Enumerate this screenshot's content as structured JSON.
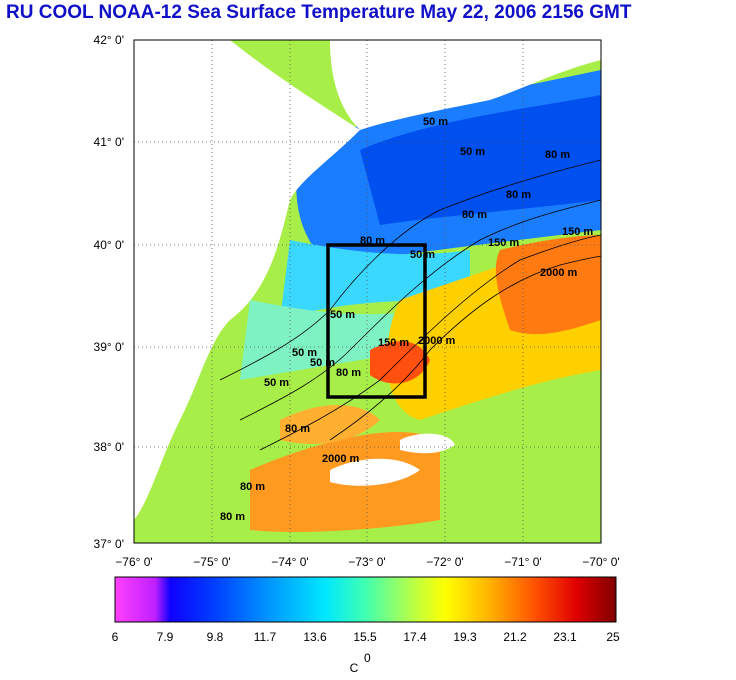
{
  "title": "RU COOL  NOAA-12 Sea Surface Temperature May 22, 2006 2156 GMT",
  "lat_labels": [
    "42° 0'",
    "41° 0'",
    "40° 0'",
    "39° 0'",
    "38° 0'",
    "37° 0'"
  ],
  "lon_labels": [
    "−76° 0'",
    "−75° 0'",
    "−74° 0'",
    "−73° 0'",
    "−72° 0'",
    "−71° 0'",
    "−70° 0'"
  ],
  "contour_labels": [
    "50 m",
    "50 m",
    "80 m",
    "80 m",
    "80 m",
    "80 m",
    "150 m",
    "150 m",
    "2000 m",
    "2000 m",
    "50 m",
    "50 m",
    "50 m",
    "80 m",
    "150 m",
    "80 m",
    "2000 m",
    "80 m",
    "80 m",
    "50 m",
    "50 m"
  ],
  "colorbar": {
    "ticks": [
      "6",
      "7.9",
      "9.8",
      "11.7",
      "13.6",
      "15.5",
      "17.4",
      "19.3",
      "21.2",
      "23.1",
      "25"
    ],
    "unit_label": "C",
    "unit_superscript": "0"
  },
  "colors": {
    "title": "#1010c8",
    "land": "#ffffff",
    "box": "#000000"
  }
}
